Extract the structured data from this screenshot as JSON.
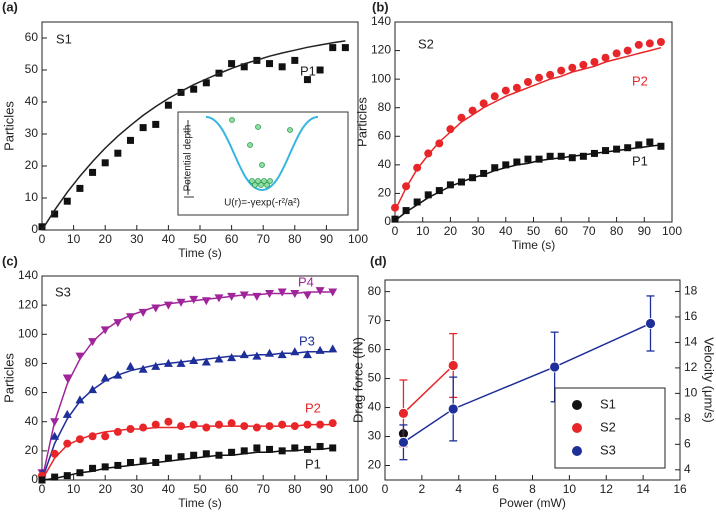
{
  "chart_data": [
    {
      "type": "scatter",
      "panel": "(a)",
      "sample": "S1",
      "xlabel": "Time (s)",
      "ylabel": "Particles",
      "inset": {
        "ylabel": "Potential depth",
        "formula": "U(r)=-γexp(-r²/a²)"
      },
      "x": [
        0,
        4,
        8,
        12,
        16,
        20,
        24,
        28,
        32,
        36,
        40,
        44,
        48,
        52,
        56,
        60,
        64,
        68,
        72,
        76,
        80,
        84,
        88,
        92,
        96
      ],
      "series": [
        {
          "name": "P1",
          "color": "#111111",
          "marker": "square",
          "values": [
            1,
            5,
            9,
            13,
            18,
            21,
            24,
            28,
            32,
            33,
            39,
            43,
            44,
            46,
            49,
            52,
            51,
            53,
            52,
            51,
            53,
            47,
            50,
            57,
            57
          ],
          "fit": [
            0,
            6.2,
            11.8,
            16.8,
            21.4,
            25.6,
            29.3,
            32.7,
            35.8,
            38.6,
            41.1,
            43.3,
            45.4,
            47.2,
            48.9,
            50.5,
            51.9,
            53.1,
            54.3,
            55.3,
            56.2,
            57.1,
            57.8,
            58.5,
            59.1
          ]
        }
      ],
      "xlim": [
        0,
        100
      ],
      "ylim": [
        0,
        65
      ],
      "xticks": [
        0,
        10,
        20,
        30,
        40,
        50,
        60,
        70,
        80,
        90,
        100
      ],
      "yticks": [
        0,
        10,
        20,
        30,
        40,
        50,
        60
      ]
    },
    {
      "type": "scatter",
      "panel": "(b)",
      "sample": "S2",
      "xlabel": "Time (s)",
      "ylabel": "Particles",
      "x": [
        0,
        4,
        8,
        12,
        16,
        20,
        24,
        28,
        32,
        36,
        40,
        44,
        48,
        52,
        56,
        60,
        64,
        68,
        72,
        76,
        80,
        84,
        88,
        92,
        96
      ],
      "series": [
        {
          "name": "P2",
          "color": "#e8262a",
          "marker": "circle",
          "values": [
            10,
            25,
            38,
            48,
            55,
            65,
            73,
            78,
            83,
            88,
            92,
            94,
            98,
            101,
            103,
            106,
            108,
            110,
            112,
            115,
            118,
            120,
            124,
            125,
            126
          ],
          "fit": [
            8,
            24,
            37,
            47,
            56,
            63,
            70,
            75,
            80,
            84,
            88,
            91,
            94,
            97,
            100,
            102,
            105,
            107,
            109,
            112,
            114,
            116,
            118,
            120,
            122
          ]
        },
        {
          "name": "P1",
          "color": "#111111",
          "marker": "square",
          "values": [
            2,
            8,
            14,
            19,
            22,
            26,
            28,
            31,
            34,
            38,
            40,
            42,
            44,
            44,
            46,
            46,
            45,
            46,
            48,
            50,
            51,
            52,
            54,
            56,
            53
          ],
          "fit": [
            1,
            7,
            12,
            17,
            21,
            25,
            28,
            31,
            33,
            36,
            38,
            40,
            41,
            43,
            44,
            45,
            46,
            47,
            48,
            49,
            50,
            51,
            52,
            53,
            54
          ]
        }
      ],
      "xlim": [
        0,
        100
      ],
      "ylim": [
        0,
        140
      ],
      "xticks": [
        0,
        10,
        20,
        30,
        40,
        50,
        60,
        70,
        80,
        90,
        100
      ],
      "yticks": [
        0,
        20,
        40,
        60,
        80,
        100,
        120,
        140
      ]
    },
    {
      "type": "scatter",
      "panel": "(c)",
      "sample": "S3",
      "xlabel": "Time (s)",
      "ylabel": "Particles",
      "x": [
        0,
        4,
        8,
        12,
        16,
        20,
        24,
        28,
        32,
        36,
        40,
        44,
        48,
        52,
        56,
        60,
        64,
        68,
        72,
        76,
        80,
        84,
        88,
        92
      ],
      "series": [
        {
          "name": "P4",
          "color": "#a0249a",
          "marker": "triangle-down",
          "values": [
            5,
            40,
            70,
            85,
            95,
            103,
            108,
            112,
            115,
            118,
            120,
            122,
            124,
            123,
            125,
            126,
            127,
            126,
            128,
            129,
            128,
            127,
            130,
            129
          ],
          "fit": [
            0,
            40,
            66,
            83,
            95,
            103,
            109,
            113,
            116,
            119,
            121,
            122,
            123,
            124,
            125,
            126,
            127,
            127,
            128,
            128,
            128,
            129,
            129,
            129
          ]
        },
        {
          "name": "P3",
          "color": "#1f2f9a",
          "marker": "triangle-up",
          "values": [
            5,
            30,
            45,
            55,
            62,
            70,
            72,
            78,
            76,
            78,
            80,
            80,
            82,
            81,
            83,
            84,
            86,
            85,
            87,
            86,
            88,
            86,
            89,
            90
          ],
          "fit": [
            0,
            25,
            42,
            54,
            62,
            68,
            72,
            75,
            77,
            79,
            80,
            81,
            82,
            83,
            84,
            85,
            85,
            86,
            86,
            87,
            87,
            88,
            88,
            88
          ]
        },
        {
          "name": "P2",
          "color": "#e8262a",
          "marker": "circle",
          "values": [
            3,
            18,
            25,
            28,
            30,
            30,
            33,
            35,
            36,
            38,
            40,
            37,
            38,
            36,
            38,
            39,
            37,
            36,
            37,
            38,
            37,
            38,
            38,
            39
          ],
          "fit": [
            0,
            15,
            24,
            28,
            31,
            33,
            34,
            35,
            35,
            36,
            36,
            36,
            37,
            37,
            37,
            37,
            37,
            37,
            37,
            37,
            37,
            38,
            38,
            38
          ]
        },
        {
          "name": "P1",
          "color": "#111111",
          "marker": "square",
          "values": [
            0,
            2,
            3,
            5,
            8,
            9,
            10,
            12,
            13,
            12,
            15,
            16,
            17,
            18,
            17,
            19,
            20,
            22,
            21,
            20,
            22,
            21,
            23,
            22
          ],
          "fit": [
            0,
            1,
            3,
            5,
            6,
            8,
            9,
            10,
            11,
            12,
            13,
            14,
            15,
            16,
            17,
            17,
            18,
            19,
            19,
            20,
            20,
            21,
            21,
            22
          ]
        }
      ],
      "xlim": [
        0,
        100
      ],
      "ylim": [
        0,
        140
      ],
      "xticks": [
        0,
        10,
        20,
        30,
        40,
        50,
        60,
        70,
        80,
        90,
        100
      ],
      "yticks": [
        0,
        20,
        40,
        60,
        80,
        100,
        120,
        140
      ]
    },
    {
      "type": "errorbar",
      "panel": "(d)",
      "xlabel": "Power (mW)",
      "ylabel": "Drag force (fN)",
      "y2label": "Velocity (μm/s)",
      "series": [
        {
          "name": "S1",
          "color": "#111111",
          "x": [
            1
          ],
          "values": [
            31
          ]
        },
        {
          "name": "S2",
          "color": "#e8262a",
          "x": [
            1,
            3.7
          ],
          "values": [
            38,
            54.5
          ],
          "errors": [
            11.5,
            11
          ]
        },
        {
          "name": "S3",
          "color": "#1f2f9a",
          "x": [
            1,
            3.7,
            9.2,
            14.4
          ],
          "values": [
            28,
            39.5,
            54,
            69
          ],
          "errors": [
            6,
            11,
            12,
            9.5
          ]
        }
      ],
      "xlim": [
        0,
        16
      ],
      "ylim": [
        15,
        84
      ],
      "y2lim": [
        3.2,
        18.9
      ],
      "xticks": [
        0,
        2,
        4,
        6,
        8,
        10,
        12,
        14,
        16
      ],
      "yticks": [
        20,
        30,
        40,
        50,
        60,
        70,
        80
      ],
      "y2ticks": [
        4,
        6,
        8,
        10,
        12,
        14,
        16,
        18
      ],
      "legend": "lower right"
    }
  ]
}
